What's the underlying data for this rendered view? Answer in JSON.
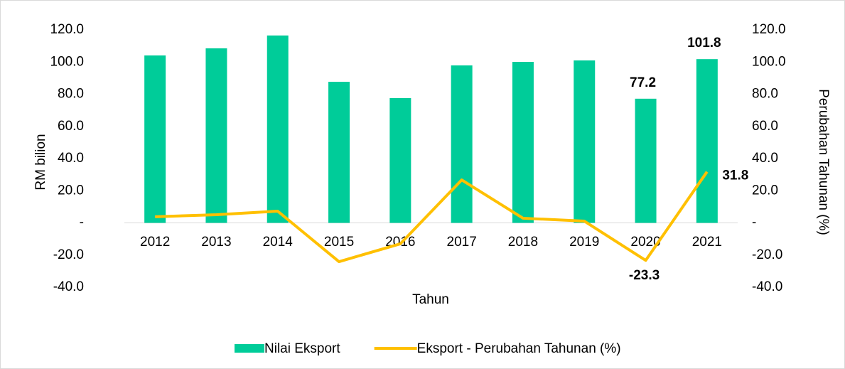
{
  "chart_data": {
    "type": "bar_line",
    "categories": [
      "2012",
      "2013",
      "2014",
      "2015",
      "2016",
      "2017",
      "2018",
      "2019",
      "2020",
      "2021"
    ],
    "series": [
      {
        "name": "Nilai Eksport",
        "type": "bar",
        "color": "#00cc99",
        "values": [
          104.1,
          108.5,
          116.5,
          87.7,
          77.6,
          97.9,
          100.1,
          101.0,
          77.2,
          101.8
        ],
        "value_labels": [
          null,
          null,
          null,
          null,
          null,
          null,
          null,
          null,
          "77.2",
          "101.8"
        ]
      },
      {
        "name": "Eksport - Perubahan Tahunan (%)",
        "type": "line",
        "axis": "y2",
        "color": "#ffc000",
        "values": [
          3.8,
          5.1,
          7.3,
          -24.1,
          -13.0,
          26.7,
          2.9,
          1.1,
          -23.3,
          31.8
        ],
        "value_labels": [
          null,
          null,
          null,
          null,
          null,
          null,
          null,
          null,
          "-23.3",
          "31.8"
        ]
      }
    ],
    "x_label": "Tahun",
    "y_label": "RM bilion",
    "y2_label": "Perubahan Tahunan (%)",
    "ylim": [
      -40,
      120
    ],
    "yticks": [
      {
        "value": -40,
        "label": "-40.0"
      },
      {
        "value": -20,
        "label": "-20.0"
      },
      {
        "value": 0,
        "label": "-"
      },
      {
        "value": 20,
        "label": "20.0"
      },
      {
        "value": 40,
        "label": "40.0"
      },
      {
        "value": 60,
        "label": "60.0"
      },
      {
        "value": 80,
        "label": "80.0"
      },
      {
        "value": 100,
        "label": "100.0"
      },
      {
        "value": 120,
        "label": "120.0"
      }
    ],
    "y2lim": [
      -40,
      120
    ],
    "y2ticks": [
      {
        "value": -40,
        "label": "-40.0"
      },
      {
        "value": -20,
        "label": "-20.0"
      },
      {
        "value": 0,
        "label": "-"
      },
      {
        "value": 20,
        "label": "20.0"
      },
      {
        "value": 40,
        "label": "40.0"
      },
      {
        "value": 60,
        "label": "60.0"
      },
      {
        "value": 80,
        "label": "80.0"
      },
      {
        "value": 100,
        "label": "100.0"
      },
      {
        "value": 120,
        "label": "120.0"
      }
    ],
    "legend": "bottom"
  }
}
